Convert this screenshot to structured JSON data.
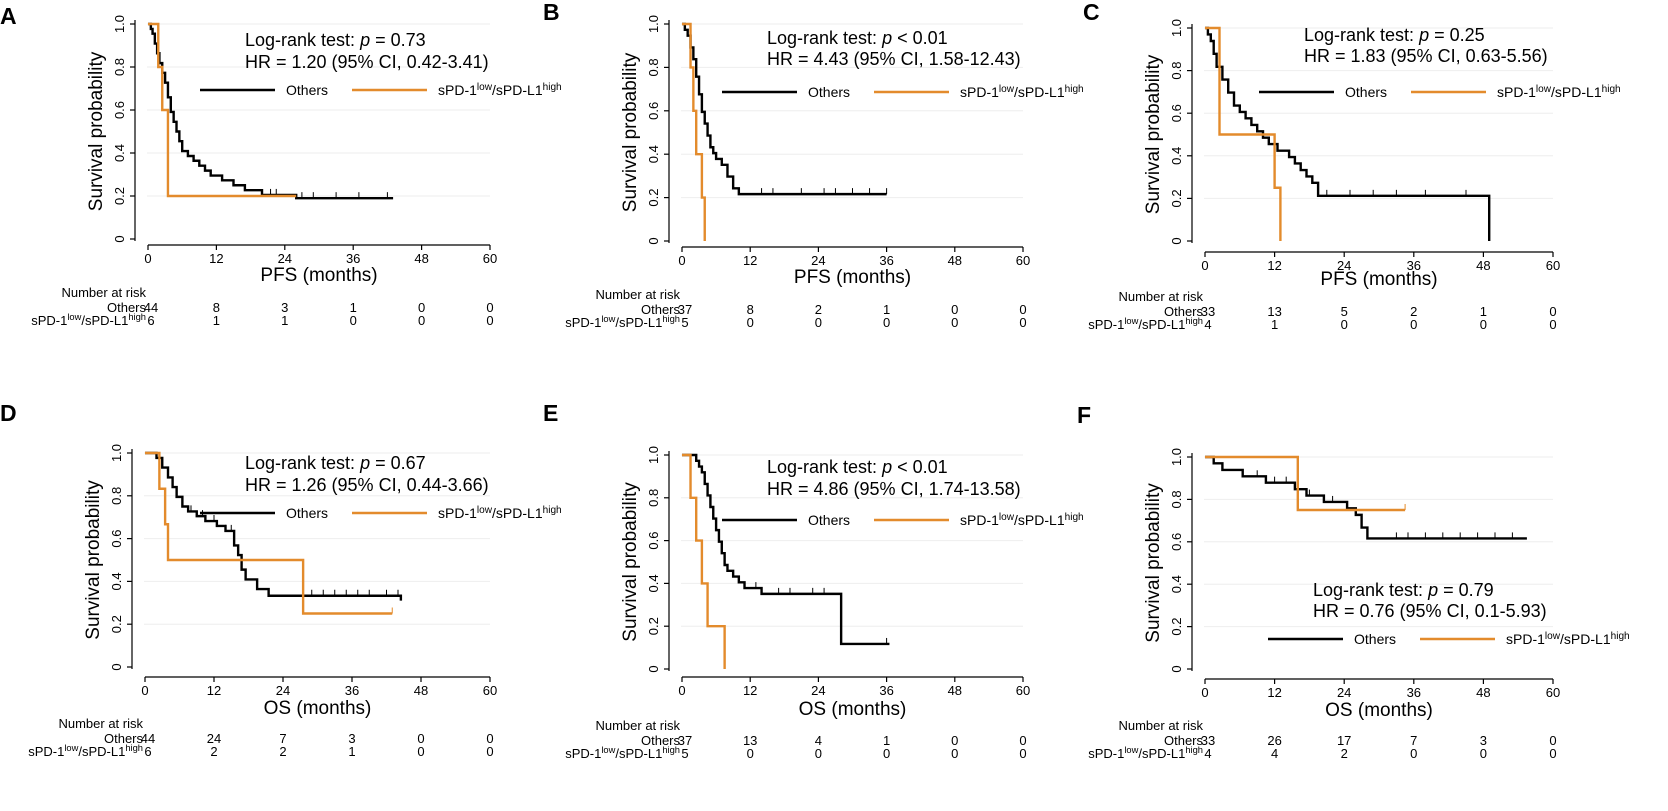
{
  "chart_data": [
    {
      "type": "line",
      "panel": "A",
      "xlabel": "PFS (months)",
      "ylabel": "Survival probability",
      "xlim": [
        0,
        60
      ],
      "ylim": [
        0,
        1
      ],
      "x_ticks": [
        "0",
        "12",
        "24",
        "36",
        "48",
        "60"
      ],
      "y_ticks": [
        "0",
        "0.2",
        "0.4",
        "0.6",
        "0.8",
        "1.0"
      ],
      "stat_test": "Log-rank test: ",
      "stat_p_symbol": "p",
      "stat_p_value": " = 0.73",
      "hr": "HR = 1.20 (95% CI, 0.42-3.41)",
      "series": [
        {
          "name": "Others",
          "color": "#000000",
          "x": [
            0,
            0.5,
            0.8,
            1.2,
            1.6,
            2.0,
            2.5,
            3.0,
            3.5,
            4.0,
            4.5,
            5.0,
            5.5,
            6.0,
            7.0,
            8.0,
            9.0,
            10.0,
            11.0,
            13.0,
            15.0,
            17.0,
            20.0,
            26.0,
            43.0
          ],
          "y": [
            1.0,
            0.977,
            0.955,
            0.909,
            0.864,
            0.818,
            0.773,
            0.727,
            0.659,
            0.591,
            0.545,
            0.5,
            0.455,
            0.409,
            0.386,
            0.364,
            0.341,
            0.318,
            0.295,
            0.273,
            0.25,
            0.227,
            0.205,
            0.19,
            0.19
          ],
          "censor_x": [
            21.5,
            22.5,
            27,
            29,
            33,
            37,
            42
          ]
        },
        {
          "name": "sPD-1low/sPD-L1high",
          "color": "#E38B2C",
          "x": [
            0,
            1.8,
            2.5,
            3.5,
            26.0
          ],
          "y": [
            1.0,
            0.8,
            0.6,
            0.2,
            0.2
          ],
          "censor_x": []
        }
      ],
      "legend": [
        "Others",
        "sPD-1low/sPD-L1high"
      ],
      "risk_title": "Number at risk",
      "risk_rows": [
        {
          "label": "Others",
          "values": [
            "44",
            "8",
            "3",
            "1",
            "0",
            "0"
          ]
        },
        {
          "label_base": "sPD-1",
          "label_sup1": "low",
          "label_mid": "/sPD-L1",
          "label_sup2": "high",
          "values": [
            "6",
            "1",
            "1",
            "0",
            "0",
            "0"
          ]
        }
      ]
    },
    {
      "type": "line",
      "panel": "B",
      "xlabel": "PFS (months)",
      "ylabel": "Survival probability",
      "xlim": [
        0,
        60
      ],
      "ylim": [
        0,
        1
      ],
      "x_ticks": [
        "0",
        "12",
        "24",
        "36",
        "48",
        "60"
      ],
      "y_ticks": [
        "0",
        "0.2",
        "0.4",
        "0.6",
        "0.8",
        "1.0"
      ],
      "stat_test": "Log-rank test: ",
      "stat_p_symbol": "p",
      "stat_p_value": " < 0.01",
      "hr": "HR = 4.43 (95% CI, 1.58-12.43)",
      "series": [
        {
          "name": "Others",
          "color": "#000000",
          "x": [
            0,
            0.5,
            1.0,
            1.5,
            2.0,
            2.5,
            3.0,
            3.5,
            4.0,
            4.5,
            5.0,
            5.5,
            6.0,
            7.0,
            8.0,
            9.0,
            10.0,
            36.0
          ],
          "y": [
            1.0,
            0.973,
            0.946,
            0.892,
            0.838,
            0.757,
            0.676,
            0.595,
            0.541,
            0.486,
            0.432,
            0.405,
            0.378,
            0.351,
            0.297,
            0.243,
            0.216,
            0.216
          ],
          "censor_x": [
            14,
            16,
            21,
            25,
            27,
            30,
            33,
            36
          ]
        },
        {
          "name": "sPD-1low/sPD-L1high",
          "color": "#E38B2C",
          "x": [
            0,
            1.5,
            2.0,
            2.5,
            3.5,
            4.0
          ],
          "y": [
            1.0,
            0.8,
            0.6,
            0.4,
            0.2,
            0.0
          ],
          "censor_x": []
        }
      ],
      "legend": [
        "Others",
        "sPD-1low/sPD-L1high"
      ],
      "risk_title": "Number at risk",
      "risk_rows": [
        {
          "label": "Others",
          "values": [
            "37",
            "8",
            "2",
            "1",
            "0",
            "0"
          ]
        },
        {
          "label_base": "sPD-1",
          "label_sup1": "low",
          "label_mid": "/sPD-L1",
          "label_sup2": "high",
          "values": [
            "5",
            "0",
            "0",
            "0",
            "0",
            "0"
          ]
        }
      ]
    },
    {
      "type": "line",
      "panel": "C",
      "xlabel": "PFS (months)",
      "ylabel": "Survival probability",
      "xlim": [
        0,
        60
      ],
      "ylim": [
        0,
        1
      ],
      "x_ticks": [
        "0",
        "12",
        "24",
        "36",
        "48",
        "60"
      ],
      "y_ticks": [
        "0",
        "0.2",
        "0.4",
        "0.6",
        "0.8",
        "1.0"
      ],
      "stat_test": "Log-rank test: ",
      "stat_p_symbol": "p",
      "stat_p_value": " = 0.25",
      "hr": "HR = 1.83 (95% CI, 0.63-5.56)",
      "series": [
        {
          "name": "Others",
          "color": "#000000",
          "x": [
            0,
            0.5,
            1.0,
            1.5,
            2.0,
            3.0,
            4.0,
            5.0,
            6.0,
            7.0,
            8.0,
            9.0,
            10.0,
            11.0,
            12.5,
            14.5,
            15.5,
            16.5,
            17.5,
            18.5,
            19.5,
            49.0
          ],
          "y": [
            1.0,
            0.97,
            0.939,
            0.879,
            0.818,
            0.758,
            0.697,
            0.636,
            0.606,
            0.576,
            0.545,
            0.515,
            0.485,
            0.455,
            0.424,
            0.394,
            0.364,
            0.333,
            0.303,
            0.273,
            0.212,
            0.0
          ],
          "censor_x": [
            21,
            25,
            29,
            33,
            38,
            45
          ]
        },
        {
          "name": "sPD-1low/sPD-L1high",
          "color": "#E38B2C",
          "x": [
            0,
            2.5,
            11.0,
            12.0,
            13.0
          ],
          "y": [
            1.0,
            0.5,
            0.5,
            0.25,
            0.0
          ],
          "censor_x": []
        }
      ],
      "legend": [
        "Others",
        "sPD-1low/sPD-L1high"
      ],
      "risk_title": "Number at risk",
      "risk_rows": [
        {
          "label": "Others",
          "values": [
            "33",
            "13",
            "5",
            "2",
            "1",
            "0"
          ]
        },
        {
          "label_base": "sPD-1",
          "label_sup1": "low",
          "label_mid": "/sPD-L1",
          "label_sup2": "high",
          "values": [
            "4",
            "1",
            "0",
            "0",
            "0",
            "0"
          ]
        }
      ]
    },
    {
      "type": "line",
      "panel": "D",
      "xlabel": "OS (months)",
      "ylabel": "Survival probability",
      "xlim": [
        0,
        60
      ],
      "ylim": [
        0,
        1
      ],
      "x_ticks": [
        "0",
        "12",
        "24",
        "36",
        "48",
        "60"
      ],
      "y_ticks": [
        "0",
        "0.2",
        "0.4",
        "0.6",
        "0.8",
        "1.0"
      ],
      "stat_test": "Log-rank test: ",
      "stat_p_symbol": "p",
      "stat_p_value": " = 0.67",
      "hr": "HR = 1.26 (95% CI, 0.44-3.66)",
      "series": [
        {
          "name": "Others",
          "color": "#000000",
          "x": [
            0,
            2.0,
            3.0,
            4.0,
            4.8,
            5.5,
            6.5,
            7.5,
            9.0,
            10.5,
            12.5,
            14.0,
            15.5,
            16.2,
            16.8,
            17.5,
            19.5,
            21.5,
            44.5
          ],
          "y": [
            1.0,
            0.977,
            0.932,
            0.886,
            0.841,
            0.795,
            0.75,
            0.727,
            0.705,
            0.682,
            0.659,
            0.636,
            0.568,
            0.523,
            0.455,
            0.409,
            0.364,
            0.333,
            0.31
          ],
          "censor_x": [
            8,
            10,
            12,
            14,
            15,
            29,
            31,
            33,
            35,
            37,
            39,
            42,
            44
          ]
        },
        {
          "name": "sPD-1low/sPD-L1high",
          "color": "#E38B2C",
          "x": [
            0,
            2.5,
            3.5,
            4.0,
            27.5,
            43.0
          ],
          "y": [
            1.0,
            0.833,
            0.667,
            0.5,
            0.25,
            0.25
          ],
          "censor_x": [
            43
          ]
        }
      ],
      "legend": [
        "Others",
        "sPD-1low/sPD-L1high"
      ],
      "risk_title": "Number at risk",
      "risk_rows": [
        {
          "label": "Others",
          "values": [
            "44",
            "24",
            "7",
            "3",
            "0",
            "0"
          ]
        },
        {
          "label_base": "sPD-1",
          "label_sup1": "low",
          "label_mid": "/sPD-L1",
          "label_sup2": "high",
          "values": [
            "6",
            "2",
            "2",
            "1",
            "0",
            "0"
          ]
        }
      ]
    },
    {
      "type": "line",
      "panel": "E",
      "xlabel": "OS (months)",
      "ylabel": "Survival probability",
      "xlim": [
        0,
        60
      ],
      "ylim": [
        0,
        1
      ],
      "x_ticks": [
        "0",
        "12",
        "24",
        "36",
        "48",
        "60"
      ],
      "y_ticks": [
        "0",
        "0.2",
        "0.4",
        "0.6",
        "0.8",
        "1.0"
      ],
      "stat_test": "Log-rank test: ",
      "stat_p_symbol": "p",
      "stat_p_value": " < 0.01",
      "hr": "HR = 4.86 (95% CI, 1.74-13.58)",
      "series": [
        {
          "name": "Others",
          "color": "#000000",
          "x": [
            0,
            2.5,
            3.0,
            3.5,
            4.0,
            4.5,
            5.0,
            5.5,
            6.0,
            6.5,
            7.0,
            7.5,
            8.0,
            9.0,
            10.0,
            11.0,
            12.0,
            14.0,
            27.0,
            28.0,
            36.5
          ],
          "y": [
            1.0,
            0.973,
            0.946,
            0.919,
            0.865,
            0.811,
            0.757,
            0.703,
            0.649,
            0.595,
            0.541,
            0.486,
            0.459,
            0.432,
            0.405,
            0.378,
            0.378,
            0.351,
            0.351,
            0.117,
            0.117
          ],
          "censor_x": [
            13,
            17,
            19,
            23,
            25,
            36
          ]
        },
        {
          "name": "sPD-1low/sPD-L1high",
          "color": "#E38B2C",
          "x": [
            0,
            1.5,
            2.5,
            3.5,
            4.5,
            7.5
          ],
          "y": [
            1.0,
            0.8,
            0.6,
            0.4,
            0.2,
            0.0
          ],
          "censor_x": []
        }
      ],
      "legend": [
        "Others",
        "sPD-1low/sPD-L1high"
      ],
      "risk_title": "Number at risk",
      "risk_rows": [
        {
          "label": "Others",
          "values": [
            "37",
            "13",
            "4",
            "1",
            "0",
            "0"
          ]
        },
        {
          "label_base": "sPD-1",
          "label_sup1": "low",
          "label_mid": "/sPD-L1",
          "label_sup2": "high",
          "values": [
            "5",
            "0",
            "0",
            "0",
            "0",
            "0"
          ]
        }
      ]
    },
    {
      "type": "line",
      "panel": "F",
      "xlabel": "OS (months)",
      "ylabel": "Survival probability",
      "xlim": [
        0,
        60
      ],
      "ylim": [
        0,
        1
      ],
      "x_ticks": [
        "0",
        "12",
        "24",
        "36",
        "48",
        "60"
      ],
      "y_ticks": [
        "0",
        "0.2",
        "0.4",
        "0.6",
        "0.8",
        "1.0"
      ],
      "stat_test": "Log-rank test: ",
      "stat_p_symbol": "p",
      "stat_p_value": " = 0.79",
      "hr": "HR = 0.76 (95% CI, 0.1-5.93)",
      "series": [
        {
          "name": "Others",
          "color": "#000000",
          "x": [
            0,
            1.5,
            3.0,
            6.5,
            10.5,
            15.5,
            17.5,
            20.5,
            24.5,
            26.0,
            27.0,
            28.0,
            55.5
          ],
          "y": [
            1.0,
            0.97,
            0.939,
            0.909,
            0.879,
            0.848,
            0.818,
            0.788,
            0.758,
            0.727,
            0.667,
            0.616,
            0.616
          ],
          "censor_x": [
            9,
            12,
            14,
            18,
            22,
            33,
            35,
            38,
            41,
            44,
            47,
            50,
            53
          ]
        },
        {
          "name": "sPD-1low/sPD-L1high",
          "color": "#E38B2C",
          "x": [
            0,
            16.0,
            34.5
          ],
          "y": [
            1.0,
            0.75,
            0.75
          ],
          "censor_x": [
            34.5
          ]
        }
      ],
      "legend": [
        "Others",
        "sPD-1low/sPD-L1high"
      ],
      "risk_title": "Number at risk",
      "risk_rows": [
        {
          "label": "Others",
          "values": [
            "33",
            "26",
            "17",
            "7",
            "3",
            "0"
          ]
        },
        {
          "label_base": "sPD-1",
          "label_sup1": "low",
          "label_mid": "/sPD-L1",
          "label_sup2": "high",
          "values": [
            "4",
            "4",
            "2",
            "0",
            "0",
            "0"
          ]
        }
      ]
    }
  ]
}
